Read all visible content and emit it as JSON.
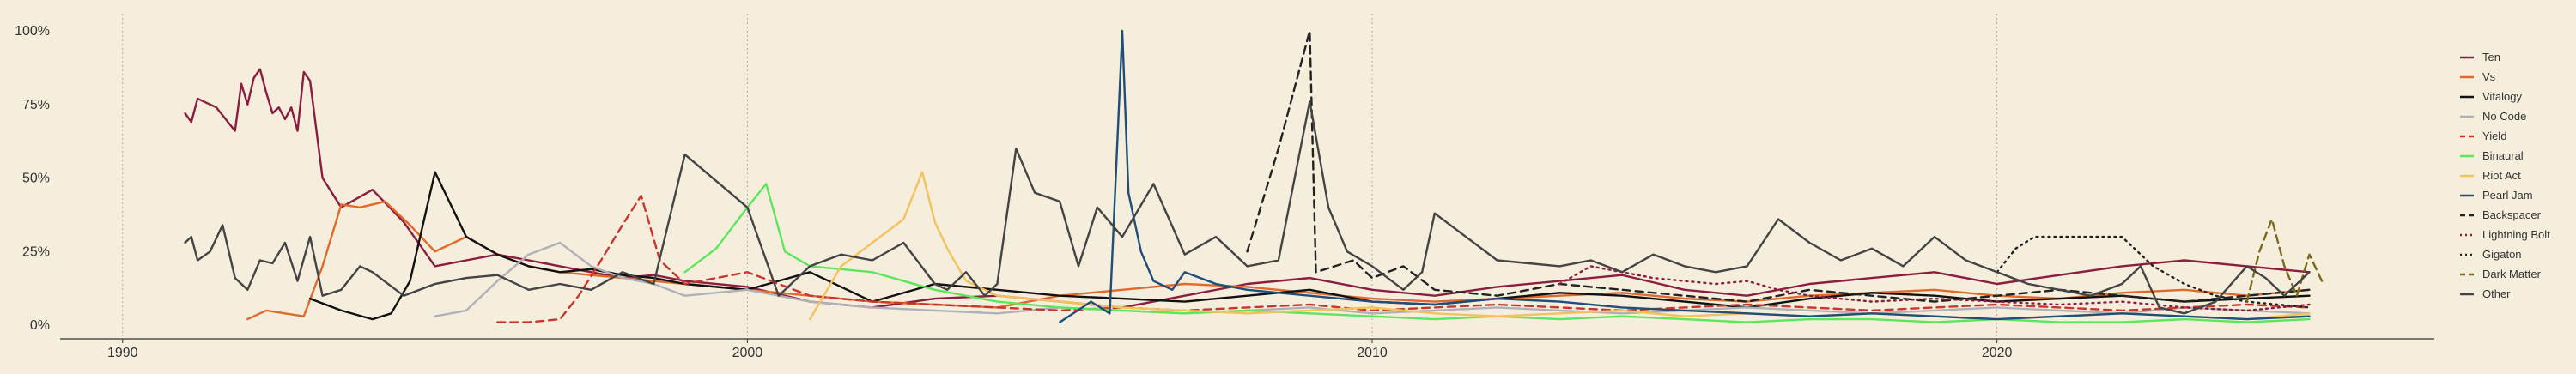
{
  "chart_data": {
    "type": "line",
    "title": "",
    "xlabel": "",
    "ylabel": "",
    "xlim": [
      1989,
      2027
    ],
    "ylim": [
      0,
      100
    ],
    "x_ticks": [
      1990,
      2000,
      2010,
      2020
    ],
    "y_ticks": [
      0,
      25,
      50,
      75,
      100
    ],
    "y_tick_labels": [
      "0%",
      "25%",
      "50%",
      "75%",
      "100%"
    ],
    "grid": "vertical-dotted",
    "legend_position": "right",
    "series": [
      {
        "name": "Ten",
        "color": "#8b1e3f",
        "dash": "solid",
        "x": [
          1991.0,
          1991.1,
          1991.2,
          1991.5,
          1991.8,
          1991.9,
          1992.0,
          1992.1,
          1992.2,
          1992.3,
          1992.4,
          1992.5,
          1992.6,
          1992.7,
          1992.8,
          1992.9,
          1993.0,
          1993.2,
          1993.5,
          1994.0,
          1994.5,
          1995.0,
          1995.5,
          1996.0,
          1996.5,
          1997.0,
          1997.5,
          1998.0,
          1998.5,
          1999.0,
          2000.0,
          2001.0,
          2002.0,
          2003.0,
          2004.0,
          2005.0,
          2006.0,
          2007.0,
          2008.0,
          2009.0,
          2010.0,
          2011.0,
          2012.0,
          2013.0,
          2014.0,
          2015.0,
          2016.0,
          2017.0,
          2018.0,
          2019.0,
          2020.0,
          2021.0,
          2022.0,
          2023.0,
          2024.0,
          2025.0
        ],
        "y": [
          72,
          69,
          77,
          74,
          66,
          82,
          75,
          84,
          87,
          79,
          72,
          74,
          70,
          74,
          66,
          86,
          83,
          50,
          40,
          46,
          35,
          20,
          22,
          24,
          22,
          20,
          18,
          16,
          17,
          15,
          13,
          8,
          6,
          9,
          10,
          8,
          6,
          10,
          14,
          16,
          12,
          10,
          13,
          15,
          17,
          12,
          10,
          14,
          16,
          18,
          14,
          17,
          20,
          22,
          20,
          18
        ]
      },
      {
        "name": "Vs",
        "color": "#e06a2b",
        "dash": "solid",
        "x": [
          1992.0,
          1992.3,
          1992.6,
          1992.9,
          1993.2,
          1993.5,
          1993.8,
          1994.2,
          1994.6,
          1995.0,
          1995.5,
          1996.0,
          1996.5,
          1997.0,
          1998.0,
          1999.0,
          2000.0,
          2001.0,
          2002.0,
          2003.0,
          2004.0,
          2005.0,
          2006.0,
          2007.0,
          2008.0,
          2009.0,
          2010.0,
          2011.0,
          2012.0,
          2013.0,
          2014.0,
          2015.0,
          2016.0,
          2017.0,
          2018.0,
          2019.0,
          2020.0,
          2021.0,
          2022.0,
          2023.0,
          2024.0,
          2025.0
        ],
        "y": [
          2,
          5,
          4,
          3,
          20,
          41,
          40,
          42,
          34,
          25,
          30,
          24,
          20,
          18,
          16,
          14,
          12,
          10,
          8,
          7,
          6,
          10,
          12,
          14,
          13,
          11,
          9,
          8,
          9,
          10,
          11,
          9,
          8,
          10,
          11,
          12,
          10,
          9,
          11,
          12,
          10,
          12
        ]
      },
      {
        "name": "Vitalogy",
        "color": "#111111",
        "dash": "solid",
        "x": [
          1993.0,
          1993.5,
          1994.0,
          1994.3,
          1994.6,
          1995.0,
          1995.5,
          1996.0,
          1996.5,
          1997.0,
          1997.5,
          1998.0,
          1998.5,
          1999.0,
          2000.0,
          2001.0,
          2002.0,
          2003.0,
          2004.0,
          2005.0,
          2006.0,
          2007.0,
          2008.0,
          2009.0,
          2010.0,
          2011.0,
          2012.0,
          2013.0,
          2014.0,
          2015.0,
          2016.0,
          2017.0,
          2018.0,
          2019.0,
          2020.0,
          2021.0,
          2022.0,
          2023.0,
          2024.0,
          2025.0
        ],
        "y": [
          9,
          5,
          2,
          4,
          15,
          52,
          30,
          24,
          20,
          18,
          19,
          17,
          16,
          14,
          12,
          18,
          8,
          14,
          12,
          10,
          9,
          8,
          10,
          12,
          8,
          7,
          9,
          11,
          10,
          8,
          6,
          9,
          11,
          10,
          8,
          9,
          10,
          8,
          9,
          10
        ]
      },
      {
        "name": "No Code",
        "color": "#b0b0b8",
        "dash": "solid",
        "x": [
          1995.0,
          1995.5,
          1996.0,
          1996.5,
          1997.0,
          1997.5,
          1998.0,
          1998.5,
          1999.0,
          2000.0,
          2001.0,
          2002.0,
          2003.0,
          2004.0,
          2005.0,
          2006.0,
          2007.0,
          2008.0,
          2009.0,
          2010.0,
          2011.0,
          2012.0,
          2013.0,
          2014.0,
          2015.0,
          2016.0,
          2017.0,
          2018.0,
          2019.0,
          2020.0,
          2021.0,
          2022.0,
          2023.0,
          2024.0,
          2025.0
        ],
        "y": [
          3,
          5,
          15,
          24,
          28,
          20,
          16,
          14,
          10,
          12,
          8,
          6,
          5,
          4,
          6,
          5,
          4,
          5,
          6,
          4,
          5,
          6,
          5,
          4,
          5,
          6,
          5,
          4,
          5,
          6,
          5,
          4,
          6,
          5,
          4
        ]
      },
      {
        "name": "Yield",
        "color": "#c8372d",
        "dash": "dashed",
        "x": [
          1996.0,
          1996.5,
          1997.0,
          1997.3,
          1997.6,
          1998.0,
          1998.3,
          1998.6,
          1999.0,
          2000.0,
          2001.0,
          2002.0,
          2003.0,
          2004.0,
          2005.0,
          2006.0,
          2007.0,
          2008.0,
          2009.0,
          2010.0,
          2011.0,
          2012.0,
          2013.0,
          2014.0,
          2015.0,
          2016.0,
          2017.0,
          2018.0,
          2019.0,
          2020.0,
          2021.0,
          2022.0,
          2023.0,
          2024.0,
          2025.0
        ],
        "y": [
          1,
          1,
          2,
          10,
          20,
          34,
          44,
          22,
          14,
          18,
          10,
          8,
          7,
          6,
          5,
          6,
          5,
          6,
          7,
          5,
          6,
          7,
          6,
          5,
          6,
          7,
          6,
          5,
          6,
          7,
          6,
          5,
          6,
          7,
          6
        ]
      },
      {
        "name": "Binaural",
        "color": "#5ce65c",
        "dash": "solid",
        "x": [
          1999.0,
          1999.5,
          2000.0,
          2000.3,
          2000.6,
          2001.0,
          2002.0,
          2003.0,
          2004.0,
          2005.0,
          2006.0,
          2007.0,
          2008.0,
          2009.0,
          2010.0,
          2011.0,
          2012.0,
          2013.0,
          2014.0,
          2015.0,
          2016.0,
          2017.0,
          2018.0,
          2019.0,
          2020.0,
          2021.0,
          2022.0,
          2023.0,
          2024.0,
          2025.0
        ],
        "y": [
          18,
          26,
          40,
          48,
          25,
          20,
          18,
          12,
          8,
          6,
          5,
          4,
          5,
          4,
          3,
          2,
          3,
          2,
          3,
          2,
          1,
          2,
          2,
          1,
          2,
          1,
          1,
          2,
          1,
          2
        ]
      },
      {
        "name": "Riot Act",
        "color": "#f2c25c",
        "dash": "solid",
        "x": [
          2001.0,
          2001.5,
          2002.0,
          2002.5,
          2002.8,
          2003.0,
          2003.2,
          2003.5,
          2004.0,
          2005.0,
          2006.0,
          2007.0,
          2008.0,
          2009.0,
          2010.0,
          2011.0,
          2012.0,
          2013.0,
          2014.0,
          2015.0,
          2016.0,
          2017.0,
          2018.0,
          2019.0,
          2020.0,
          2021.0,
          2022.0,
          2023.0,
          2024.0,
          2025.0
        ],
        "y": [
          2,
          20,
          28,
          36,
          52,
          35,
          26,
          15,
          10,
          8,
          6,
          5,
          4,
          5,
          6,
          4,
          3,
          4,
          5,
          3,
          4,
          3,
          4,
          3,
          2,
          3,
          4,
          3,
          2,
          4
        ]
      },
      {
        "name": "Pearl Jam",
        "color": "#1f4e79",
        "dash": "solid",
        "x": [
          2005.0,
          2005.5,
          2005.8,
          2006.0,
          2006.1,
          2006.3,
          2006.5,
          2006.8,
          2007.0,
          2007.5,
          2008.0,
          2009.0,
          2010.0,
          2011.0,
          2012.0,
          2013.0,
          2014.0,
          2015.0,
          2016.0,
          2017.0,
          2018.0,
          2019.0,
          2020.0,
          2021.0,
          2022.0,
          2023.0,
          2024.0,
          2025.0
        ],
        "y": [
          1,
          8,
          4,
          100,
          45,
          25,
          15,
          12,
          18,
          14,
          12,
          10,
          8,
          7,
          9,
          8,
          6,
          5,
          4,
          3,
          4,
          3,
          2,
          3,
          4,
          3,
          2,
          3
        ]
      },
      {
        "name": "Backspacer",
        "color": "#222222",
        "dash": "dashed",
        "x": [
          2008.0,
          2008.5,
          2009.0,
          2009.1,
          2009.4,
          2009.7,
          2010.0,
          2010.5,
          2011.0,
          2012.0,
          2013.0,
          2014.0,
          2015.0,
          2016.0,
          2017.0,
          2018.0,
          2019.0,
          2020.0,
          2021.0,
          2022.0,
          2023.0,
          2024.0,
          2025.0
        ],
        "y": [
          25,
          60,
          100,
          18,
          20,
          22,
          16,
          20,
          12,
          10,
          14,
          12,
          10,
          8,
          12,
          10,
          8,
          10,
          12,
          10,
          8,
          10,
          12
        ]
      },
      {
        "name": "Lightning Bolt",
        "color": "#8b1e3f",
        "dash": "dotted",
        "x": [
          2013.0,
          2013.5,
          2014.0,
          2014.5,
          2015.0,
          2015.5,
          2016.0,
          2016.5,
          2017.0,
          2018.0,
          2019.0,
          2020.0,
          2021.0,
          2022.0,
          2023.0,
          2024.0,
          2025.0
        ],
        "y": [
          14,
          20,
          18,
          16,
          15,
          14,
          15,
          12,
          10,
          8,
          9,
          8,
          7,
          8,
          6,
          5,
          7
        ]
      },
      {
        "name": "Gigaton",
        "color": "#222222",
        "dash": "dotted",
        "x": [
          2020.0,
          2020.3,
          2020.6,
          2021.0,
          2021.5,
          2022.0,
          2022.5,
          2023.0,
          2023.5,
          2024.0,
          2025.0
        ],
        "y": [
          18,
          26,
          30,
          30,
          30,
          30,
          20,
          14,
          10,
          8,
          6
        ]
      },
      {
        "name": "Dark Matter",
        "color": "#7a6a1a",
        "dash": "dashed",
        "x": [
          2024.0,
          2024.2,
          2024.4,
          2024.6,
          2024.8,
          2025.0,
          2025.2
        ],
        "y": [
          8,
          25,
          36,
          20,
          10,
          24,
          15
        ]
      },
      {
        "name": "Other",
        "color": "#444444",
        "dash": "solid",
        "x": [
          1991.0,
          1991.1,
          1991.2,
          1991.4,
          1991.6,
          1991.8,
          1992.0,
          1992.2,
          1992.4,
          1992.6,
          1992.8,
          1993.0,
          1993.2,
          1993.5,
          1993.8,
          1994.0,
          1994.5,
          1995.0,
          1995.5,
          1996.0,
          1996.5,
          1997.0,
          1997.5,
          1998.0,
          1998.5,
          1999.0,
          2000.0,
          2000.5,
          2001.0,
          2001.5,
          2002.0,
          2002.5,
          2003.0,
          2003.2,
          2003.5,
          2003.8,
          2004.0,
          2004.3,
          2004.6,
          2005.0,
          2005.3,
          2005.6,
          2006.0,
          2006.5,
          2007.0,
          2007.5,
          2008.0,
          2008.5,
          2009.0,
          2009.3,
          2009.6,
          2010.0,
          2010.5,
          2010.8,
          2011.0,
          2011.5,
          2012.0,
          2013.0,
          2013.5,
          2014.0,
          2014.5,
          2015.0,
          2015.5,
          2016.0,
          2016.5,
          2017.0,
          2017.5,
          2018.0,
          2018.5,
          2019.0,
          2019.5,
          2020.0,
          2020.5,
          2021.0,
          2021.5,
          2022.0,
          2022.3,
          2022.6,
          2023.0,
          2023.5,
          2024.0,
          2024.3,
          2024.6,
          2025.0
        ],
        "y": [
          28,
          30,
          22,
          25,
          34,
          16,
          12,
          22,
          21,
          28,
          15,
          30,
          10,
          12,
          20,
          18,
          10,
          14,
          16,
          17,
          12,
          14,
          12,
          18,
          14,
          58,
          40,
          10,
          20,
          24,
          22,
          28,
          14,
          12,
          18,
          10,
          14,
          60,
          45,
          42,
          20,
          40,
          30,
          48,
          24,
          30,
          20,
          22,
          76,
          40,
          25,
          20,
          12,
          18,
          38,
          30,
          22,
          20,
          22,
          18,
          24,
          20,
          18,
          20,
          36,
          28,
          22,
          26,
          20,
          30,
          22,
          18,
          14,
          12,
          10,
          14,
          20,
          6,
          4,
          8,
          20,
          16,
          10,
          18
        ]
      }
    ]
  }
}
